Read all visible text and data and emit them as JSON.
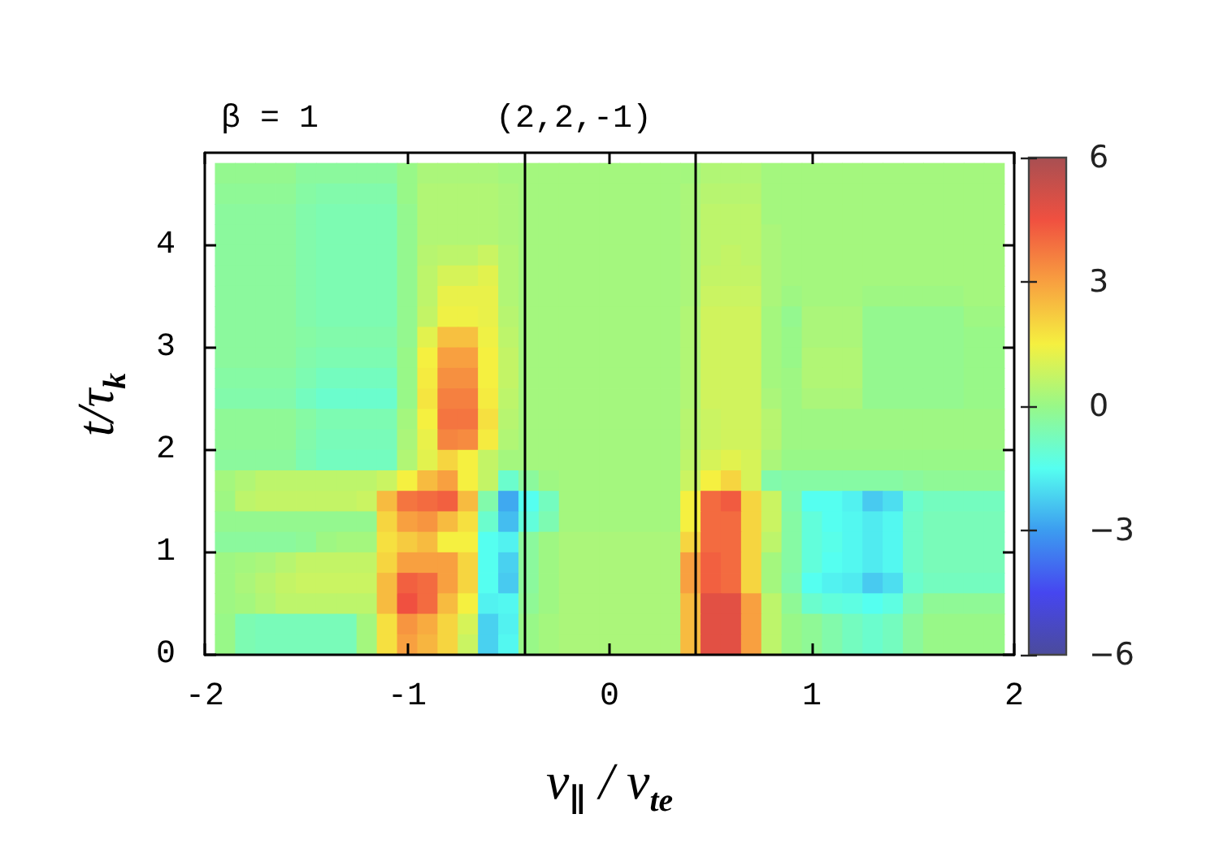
{
  "chart_data": {
    "type": "heatmap",
    "title": "(2,2,-1)",
    "annotations": [
      "β = 1"
    ],
    "xlabel": "v$_{∥}$ / v$_{te}$",
    "ylabel": "t/τ$_{k}$",
    "x": [
      -1.9,
      -1.8,
      -1.7,
      -1.6,
      -1.5,
      -1.4,
      -1.3,
      -1.2,
      -1.1,
      -1.0,
      -0.9,
      -0.8,
      -0.7,
      -0.6,
      -0.5,
      -0.4,
      -0.3,
      -0.2,
      -0.1,
      0,
      0.1,
      0.2,
      0.3,
      0.4,
      0.5,
      0.6,
      0.7,
      0.8,
      0.9,
      1.0,
      1.1,
      1.2,
      1.3,
      1.4,
      1.5,
      1.6,
      1.7,
      1.8,
      1.9
    ],
    "y": [
      4.7,
      4.5,
      4.3,
      4.1,
      3.9,
      3.7,
      3.5,
      3.3,
      3.1,
      2.9,
      2.7,
      2.5,
      2.3,
      2.1,
      1.9,
      1.7,
      1.5,
      1.3,
      1.1,
      0.9,
      0.7,
      0.5,
      0.3,
      0.1
    ],
    "cells": [
      [
        -0.1,
        -0.1,
        -0.1,
        -0.1,
        -0.3,
        -0.3,
        -0.3,
        -0.3,
        -0.3,
        0,
        0.3,
        0.3,
        0.3,
        0.3,
        0.2,
        0.2,
        0.2,
        0.2,
        0.2,
        0.2,
        0.2,
        0.2,
        0.2,
        0.2,
        0.4,
        0.4,
        0.4,
        0.2,
        0.2,
        0.2,
        0.2,
        0.2,
        0.2,
        0.2,
        0.2,
        0.2,
        0.2,
        0.2,
        0.2
      ],
      [
        -0.2,
        -0.2,
        -0.2,
        -0.2,
        -0.4,
        -0.5,
        -0.5,
        -0.5,
        -0.5,
        0,
        0.4,
        0.4,
        0.4,
        0.4,
        0.3,
        0.2,
        0.2,
        0.2,
        0.2,
        0.2,
        0.2,
        0.2,
        0.2,
        0.3,
        0.5,
        0.5,
        0.5,
        0.2,
        0.2,
        0.2,
        0.2,
        0.2,
        0.2,
        0.2,
        0.2,
        0.2,
        0.2,
        0.2,
        0.2
      ],
      [
        -0.3,
        -0.3,
        -0.3,
        -0.3,
        -0.5,
        -0.6,
        -0.6,
        -0.6,
        -0.6,
        -0.1,
        0.4,
        0.4,
        0.4,
        0.4,
        0.3,
        0.2,
        0.2,
        0.2,
        0.2,
        0.2,
        0.2,
        0.2,
        0.2,
        0.3,
        0.6,
        0.6,
        0.6,
        0.2,
        0.2,
        0.2,
        0.2,
        0.2,
        0.2,
        0.2,
        0.2,
        0.2,
        0.2,
        0.2,
        0.2
      ],
      [
        -0.3,
        -0.3,
        -0.3,
        -0.3,
        -0.5,
        -0.6,
        -0.6,
        -0.6,
        -0.6,
        -0.1,
        0.4,
        0.4,
        0.4,
        0.4,
        0.3,
        0.2,
        0.2,
        0.2,
        0.2,
        0.2,
        0.2,
        0.2,
        0.2,
        0.3,
        0.6,
        0.6,
        0.6,
        0.3,
        0.2,
        0.2,
        0.2,
        0.2,
        0.2,
        0.2,
        0.2,
        0.2,
        0.2,
        0.2,
        0.2
      ],
      [
        -0.3,
        -0.3,
        -0.3,
        -0.3,
        -0.5,
        -0.6,
        -0.6,
        -0.6,
        -0.6,
        -0.1,
        0.5,
        0.6,
        0.6,
        0.8,
        0.4,
        0.2,
        0.2,
        0.2,
        0.2,
        0.2,
        0.2,
        0.2,
        0.2,
        0.3,
        0.6,
        0.7,
        0.6,
        0.3,
        0.2,
        0.2,
        0.2,
        0.2,
        0.2,
        0.2,
        0.2,
        0.2,
        0.2,
        0.2,
        0.2
      ],
      [
        -0.3,
        -0.3,
        -0.3,
        -0.3,
        -0.5,
        -0.6,
        -0.6,
        -0.6,
        -0.6,
        -0.1,
        0.6,
        1.0,
        1.0,
        1.2,
        0.4,
        0.2,
        0.2,
        0.2,
        0.2,
        0.2,
        0.2,
        0.2,
        0.2,
        0.3,
        0.7,
        0.7,
        0.7,
        0.3,
        0.2,
        0.2,
        0.2,
        0.2,
        0.2,
        0.2,
        0.2,
        0.2,
        0.2,
        0.2,
        0.2
      ],
      [
        -0.3,
        -0.3,
        -0.3,
        -0.3,
        -0.5,
        -0.6,
        -0.6,
        -0.6,
        -0.6,
        -0.1,
        0.6,
        1.3,
        1.3,
        1.3,
        0.4,
        0.2,
        0.2,
        0.2,
        0.2,
        0.2,
        0.2,
        0.2,
        0.2,
        0.3,
        0.8,
        0.8,
        0.8,
        0.3,
        0.1,
        0.2,
        0.2,
        0.2,
        0.1,
        0.1,
        0.1,
        0.1,
        0.1,
        0.2,
        0.2
      ],
      [
        -0.3,
        -0.3,
        -0.3,
        -0.3,
        -0.5,
        -0.6,
        -0.6,
        -0.6,
        -0.6,
        -0.1,
        0.7,
        1.4,
        1.4,
        1.3,
        0.5,
        0.2,
        0.2,
        0.2,
        0.2,
        0.2,
        0.2,
        0.2,
        0.2,
        0.4,
        0.9,
        0.9,
        0.9,
        0.2,
        -0.1,
        0.3,
        0.3,
        0.3,
        -0.1,
        -0.1,
        -0.1,
        -0.1,
        -0.1,
        0.1,
        0.1
      ],
      [
        -0.3,
        -0.3,
        -0.3,
        -0.3,
        -0.4,
        -0.5,
        -0.5,
        -0.5,
        -0.5,
        -0.1,
        1.2,
        2.4,
        2.4,
        1.4,
        0.6,
        0.2,
        0.2,
        0.2,
        0.2,
        0.2,
        0.2,
        0.2,
        0.2,
        0.4,
        0.9,
        0.9,
        0.9,
        0.2,
        0,
        0.3,
        0.3,
        0.3,
        -0.1,
        -0.1,
        -0.1,
        -0.1,
        -0.1,
        0,
        0
      ],
      [
        -0.3,
        -0.3,
        -0.3,
        -0.3,
        -0.5,
        -0.6,
        -0.6,
        -0.6,
        -0.6,
        0,
        1.5,
        3.0,
        3.0,
        1.5,
        0.7,
        0.2,
        0.2,
        0.2,
        0.2,
        0.2,
        0.2,
        0.2,
        0.2,
        0.4,
        0.9,
        0.9,
        0.9,
        0.2,
        0,
        0.4,
        0.4,
        0.4,
        -0.1,
        -0.1,
        -0.1,
        -0.1,
        -0.1,
        0,
        0
      ],
      [
        -0.4,
        -0.4,
        -0.4,
        -0.4,
        -0.6,
        -0.8,
        -0.8,
        -0.8,
        -0.8,
        0,
        1.6,
        3.3,
        3.3,
        1.5,
        0.7,
        0.2,
        0.2,
        0.2,
        0.2,
        0.2,
        0.2,
        0.2,
        0.2,
        0.4,
        0.9,
        0.9,
        0.9,
        0.2,
        0.1,
        0.4,
        0.4,
        0.4,
        -0.1,
        -0.1,
        -0.1,
        -0.1,
        -0.1,
        0,
        0
      ],
      [
        -0.5,
        -0.5,
        -0.5,
        -0.5,
        -0.8,
        -1.0,
        -1.0,
        -1.0,
        -1.0,
        0,
        1.7,
        3.6,
        3.6,
        1.6,
        0.6,
        0.2,
        0.2,
        0.2,
        0.2,
        0.2,
        0.2,
        0.2,
        0.2,
        0.4,
        0.9,
        0.9,
        0.9,
        0.3,
        0.1,
        0.3,
        0.3,
        0.3,
        -0.1,
        -0.1,
        -0.1,
        -0.1,
        -0.1,
        0,
        0
      ],
      [
        -0.2,
        -0.2,
        -0.2,
        -0.2,
        -0.4,
        -0.6,
        -0.6,
        -0.6,
        -0.6,
        0.2,
        1.5,
        3.8,
        3.8,
        1.8,
        0.5,
        0.2,
        0.2,
        0.2,
        0.2,
        0.2,
        0.2,
        0.2,
        0.2,
        0.5,
        0.8,
        0.9,
        0.9,
        0.5,
        0.1,
        0.1,
        0.1,
        0.1,
        0.1,
        0.1,
        0.1,
        0.1,
        0.1,
        0.1,
        0.1
      ],
      [
        -0.2,
        -0.2,
        -0.2,
        -0.2,
        -0.5,
        -0.7,
        -0.7,
        -0.7,
        -0.7,
        0.3,
        1.3,
        3.5,
        3.4,
        1.6,
        0.4,
        0.2,
        0.2,
        0.2,
        0.2,
        0.2,
        0.2,
        0.2,
        0.2,
        0.5,
        0.8,
        0.9,
        0.9,
        0.5,
        0.1,
        0.1,
        0.1,
        0.1,
        0.1,
        0.1,
        0.1,
        0.1,
        0.1,
        0.1,
        0.1
      ],
      [
        -0.3,
        -0.3,
        -0.3,
        -0.3,
        -0.6,
        -0.8,
        -0.8,
        -0.8,
        -0.8,
        0.4,
        1.2,
        2.0,
        1.5,
        0.7,
        0.2,
        0.2,
        0.2,
        0.2,
        0.2,
        0.2,
        0.2,
        0.2,
        0.2,
        0.6,
        1.0,
        1.2,
        1.0,
        0.3,
        0,
        0,
        0,
        0,
        0,
        0,
        0,
        0,
        0,
        0,
        0
      ],
      [
        0.2,
        0.4,
        0.6,
        0.6,
        0.6,
        0.6,
        0.6,
        0.6,
        0.8,
        1.5,
        2.5,
        3.0,
        1.5,
        0.7,
        -1.0,
        -0.3,
        0.1,
        0.2,
        0.2,
        0.2,
        0.2,
        0.2,
        0.2,
        0.8,
        1.5,
        2.0,
        1.0,
        -0.5,
        -0.4,
        -0.4,
        -0.4,
        -0.4,
        -0.4,
        -0.4,
        -0.3,
        -0.2,
        -0.2,
        -0.2,
        -0.2
      ],
      [
        0.1,
        0.6,
        0.7,
        0.7,
        0.7,
        0.7,
        0.7,
        0.8,
        2.5,
        3.8,
        4.0,
        4.2,
        2.5,
        -0.5,
        -2.8,
        -1.5,
        -0.8,
        0.2,
        0.2,
        0.2,
        0.2,
        0.2,
        0.2,
        1.5,
        4.0,
        4.3,
        2.0,
        0.8,
        -0.5,
        -1.5,
        -1.5,
        -1.7,
        -2.3,
        -2.0,
        -1.0,
        -0.8,
        -0.8,
        -0.8,
        -0.8
      ],
      [
        -0.1,
        -0.1,
        -0.1,
        -0.1,
        -0.1,
        -0.1,
        -0.1,
        -0.1,
        2.0,
        3.0,
        3.2,
        2.5,
        1.8,
        -1.0,
        -2.5,
        -1.2,
        -0.6,
        0.2,
        0.2,
        0.2,
        0.2,
        0.2,
        0.2,
        1.5,
        4.0,
        4.0,
        2.0,
        0.8,
        -0.4,
        -1.2,
        -1.5,
        -1.6,
        -1.8,
        -1.6,
        -0.9,
        -0.7,
        -0.7,
        -0.7,
        -0.7
      ],
      [
        -0.3,
        -0.3,
        -0.3,
        -0.3,
        -0.2,
        0.1,
        0.2,
        0.2,
        1.8,
        2.2,
        2.5,
        1.5,
        1.5,
        -1.5,
        -1.7,
        -0.3,
        0.1,
        0.3,
        0.3,
        0.3,
        0.3,
        0.3,
        0.3,
        2.0,
        4.0,
        4.0,
        2.0,
        0.6,
        -0.4,
        -1.2,
        -1.4,
        -1.6,
        -1.8,
        -1.6,
        -0.9,
        -0.7,
        -0.7,
        -0.7,
        -0.7
      ],
      [
        0.1,
        0.2,
        0.3,
        0.5,
        0.7,
        0.7,
        0.7,
        0.7,
        2.0,
        3.0,
        3.0,
        3.0,
        2.0,
        -1.5,
        -2.2,
        -0.3,
        0.1,
        0.3,
        0.3,
        0.3,
        0.3,
        0.3,
        0.3,
        3.0,
        4.2,
        4.0,
        2.0,
        0.2,
        -0.4,
        -1.2,
        -1.5,
        -1.6,
        -1.8,
        -1.6,
        -0.9,
        -0.7,
        -0.7,
        -0.7,
        -0.7
      ],
      [
        0.1,
        0.3,
        0.5,
        0.7,
        0.8,
        0.8,
        0.8,
        0.8,
        2.5,
        4.2,
        4.0,
        3.0,
        2.0,
        -1.5,
        -2.3,
        -0.3,
        0.1,
        0.3,
        0.3,
        0.3,
        0.3,
        0.3,
        0.3,
        3.0,
        4.2,
        4.0,
        2.0,
        0.2,
        -0.5,
        -1.5,
        -1.7,
        -1.8,
        -2.3,
        -2.0,
        -1.0,
        -0.8,
        -0.8,
        -0.8,
        -0.8
      ],
      [
        0.1,
        0.2,
        0.4,
        0.6,
        0.6,
        0.6,
        0.6,
        0.6,
        2.5,
        4.5,
        4.0,
        2.5,
        1.5,
        -1.7,
        -1.6,
        -0.2,
        0.1,
        0.3,
        0.3,
        0.3,
        0.3,
        0.3,
        0.3,
        2.5,
        4.8,
        4.8,
        3.0,
        0.6,
        -0.2,
        -1.0,
        -1.2,
        -1.3,
        -1.5,
        -1.3,
        -0.6,
        -0.2,
        -0.2,
        -0.2,
        -0.2
      ],
      [
        0,
        -0.6,
        -0.7,
        -0.7,
        -0.7,
        -0.7,
        -0.7,
        0.2,
        1.8,
        3.2,
        2.8,
        2.0,
        1.0,
        -2.2,
        -1.7,
        0,
        0.2,
        0.3,
        0.3,
        0.3,
        0.3,
        0.3,
        0.3,
        2.5,
        4.8,
        4.8,
        3.0,
        0.6,
        0,
        -0.2,
        -0.5,
        -0.8,
        -1.0,
        -0.8,
        -0.3,
        0,
        0,
        0,
        0
      ],
      [
        0,
        -0.6,
        -0.7,
        -0.7,
        -0.7,
        -0.7,
        -0.7,
        0.2,
        1.8,
        3.0,
        2.6,
        2.0,
        0.8,
        -2.2,
        -1.6,
        0,
        0.2,
        0.3,
        0.3,
        0.3,
        0.3,
        0.3,
        0.3,
        2.5,
        4.8,
        4.8,
        3.0,
        0.6,
        0,
        -0.2,
        -0.5,
        -0.8,
        -1.0,
        -0.8,
        -0.3,
        0,
        0,
        0,
        0
      ]
    ],
    "xlim": [
      -2,
      2
    ],
    "xticks": [
      -2,
      -1,
      0,
      1,
      2
    ],
    "ylim": [
      0,
      4.9
    ],
    "yticks": [
      0,
      1,
      2,
      3,
      4
    ],
    "clim": [
      -6,
      6
    ],
    "cticks": [
      {
        "value": -6,
        "label": "−6"
      },
      {
        "value": -3,
        "label": "−3"
      },
      0,
      3,
      6
    ],
    "ref_lines": [
      {
        "axis": "x",
        "value": -0.42,
        "color": "#000000"
      },
      {
        "axis": "x",
        "value": 0.42,
        "color": "#000000"
      }
    ]
  }
}
